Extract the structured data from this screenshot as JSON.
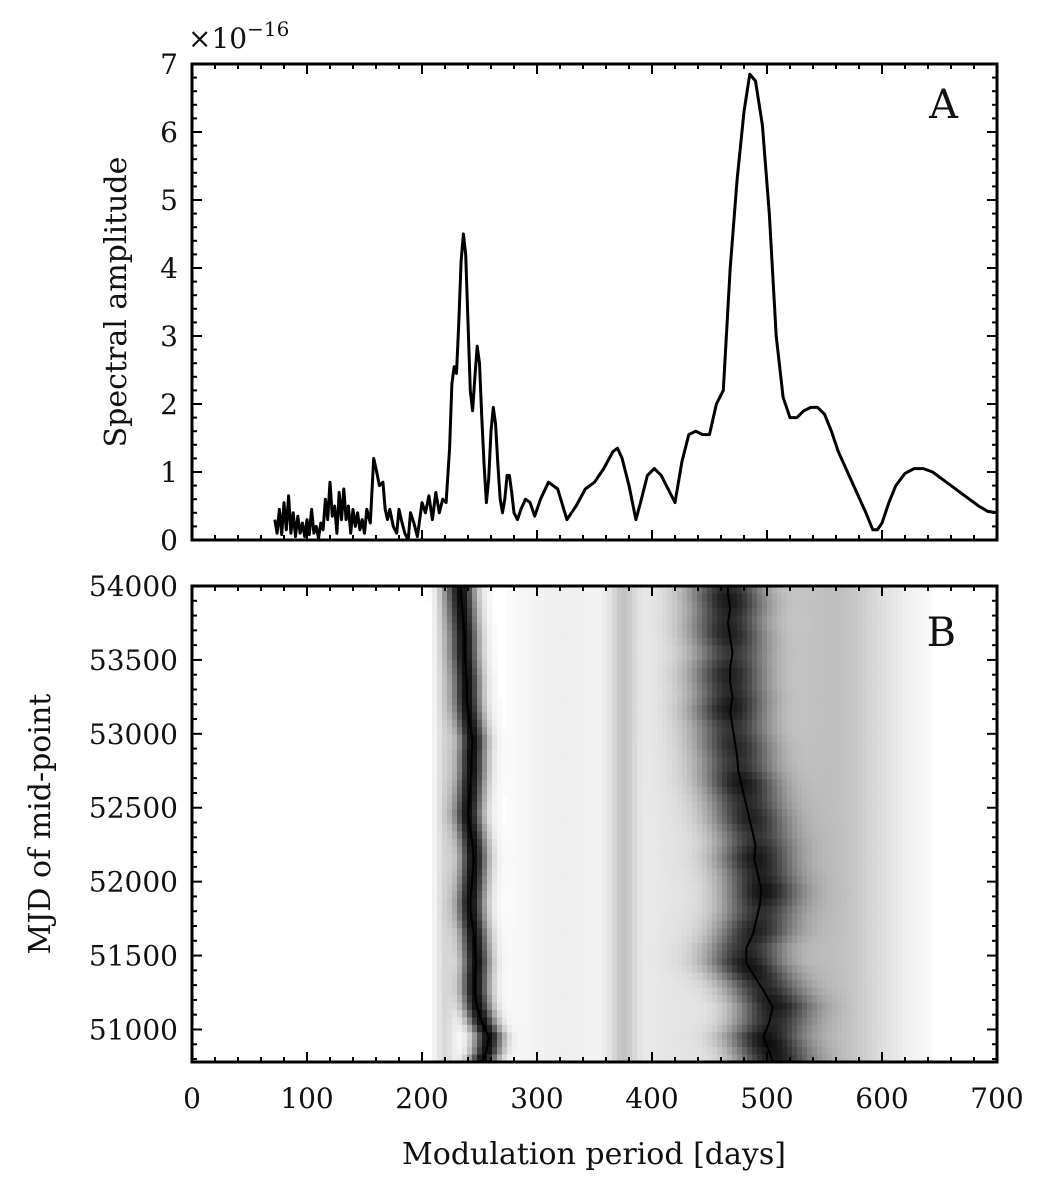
{
  "chart_data": [
    {
      "panel_label": "A",
      "type": "line",
      "xlabel": "",
      "ylabel": "Spectral amplitude",
      "y_scale_label": "×10",
      "y_scale_exponent": "−16",
      "xlim": [
        0,
        700
      ],
      "ylim": [
        0,
        7
      ],
      "x_ticks": [
        0,
        100,
        200,
        300,
        400,
        500,
        600,
        700
      ],
      "y_ticks": [
        0,
        1,
        2,
        3,
        4,
        5,
        6,
        7
      ],
      "y_tick_labels": [
        "0",
        "1",
        "2",
        "3",
        "4",
        "5",
        "6",
        "7"
      ],
      "series": [
        {
          "x": [
            72,
            74,
            76,
            78,
            80,
            82,
            84,
            86,
            88,
            90,
            92,
            94,
            96,
            98,
            100,
            102,
            104,
            106,
            108,
            110,
            112,
            114,
            116,
            118,
            120,
            122,
            124,
            126,
            128,
            130,
            132,
            134,
            136,
            138,
            140,
            142,
            144,
            146,
            148,
            150,
            152,
            155,
            158,
            160,
            163,
            166,
            168,
            170,
            172,
            175,
            178,
            180,
            182,
            185,
            188,
            190,
            193,
            196,
            200,
            203,
            206,
            209,
            212,
            215,
            218,
            221,
            224,
            226,
            228,
            230,
            232,
            234,
            236,
            238,
            240,
            242,
            244,
            246,
            248,
            250,
            252,
            254,
            256,
            258,
            260,
            262,
            264,
            266,
            268,
            270,
            272,
            274,
            276,
            278,
            280,
            283,
            286,
            290,
            294,
            298,
            303,
            310,
            318,
            326,
            334,
            342,
            350,
            358,
            366,
            370,
            374,
            380,
            386,
            390,
            396,
            402,
            408,
            414,
            420,
            426,
            432,
            438,
            444,
            450,
            456,
            462,
            468,
            474,
            480,
            485,
            490,
            496,
            502,
            508,
            514,
            520,
            526,
            532,
            538,
            544,
            550,
            556,
            562,
            570,
            578,
            586,
            592,
            596,
            600,
            606,
            612,
            620,
            628,
            636,
            644,
            652,
            660,
            668,
            676,
            684,
            692,
            700
          ],
          "y": [
            0.3,
            0.1,
            0.45,
            0.08,
            0.55,
            0.15,
            0.65,
            0.1,
            0.4,
            0.05,
            0.35,
            0.1,
            0.25,
            0.05,
            0.3,
            0.08,
            0.45,
            0.1,
            0.2,
            0.03,
            0.25,
            0.15,
            0.6,
            0.3,
            0.85,
            0.35,
            0.5,
            0.1,
            0.7,
            0.3,
            0.75,
            0.3,
            0.5,
            0.1,
            0.45,
            0.2,
            0.4,
            0.15,
            0.3,
            0.1,
            0.45,
            0.25,
            1.2,
            1.05,
            0.8,
            0.85,
            0.45,
            0.3,
            0.45,
            0.2,
            0.1,
            0.45,
            0.3,
            0.1,
            0.0,
            0.4,
            0.25,
            0.05,
            0.55,
            0.4,
            0.65,
            0.3,
            0.7,
            0.4,
            0.6,
            0.55,
            1.35,
            2.3,
            2.55,
            2.45,
            3.2,
            4.1,
            4.5,
            4.2,
            3.2,
            2.2,
            1.9,
            2.4,
            2.85,
            2.6,
            1.8,
            1.1,
            0.55,
            0.9,
            1.6,
            1.95,
            1.7,
            1.1,
            0.6,
            0.4,
            0.6,
            0.95,
            0.95,
            0.7,
            0.4,
            0.3,
            0.45,
            0.6,
            0.55,
            0.35,
            0.6,
            0.85,
            0.75,
            0.3,
            0.5,
            0.75,
            0.85,
            1.05,
            1.3,
            1.35,
            1.2,
            0.8,
            0.3,
            0.55,
            0.95,
            1.05,
            0.95,
            0.75,
            0.55,
            1.15,
            1.55,
            1.6,
            1.55,
            1.55,
            2.0,
            2.2,
            4.0,
            5.3,
            6.3,
            6.85,
            6.75,
            6.1,
            4.8,
            3.0,
            2.1,
            1.8,
            1.8,
            1.9,
            1.95,
            1.95,
            1.85,
            1.6,
            1.3,
            1.0,
            0.7,
            0.4,
            0.15,
            0.15,
            0.25,
            0.55,
            0.8,
            0.98,
            1.05,
            1.05,
            1.0,
            0.9,
            0.8,
            0.7,
            0.6,
            0.5,
            0.42,
            0.4
          ]
        }
      ]
    },
    {
      "panel_label": "B",
      "type": "heatmap",
      "xlabel": "Modulation period [days]",
      "ylabel": "MJD of mid-point",
      "xlim": [
        0,
        700
      ],
      "ylim": [
        50780,
        54000
      ],
      "x_ticks": [
        0,
        100,
        200,
        300,
        400,
        500,
        600,
        700
      ],
      "x_tick_labels": [
        "0",
        "100",
        "200",
        "300",
        "400",
        "500",
        "600",
        "700"
      ],
      "y_ticks": [
        51000,
        51500,
        52000,
        52500,
        53000,
        53500,
        54000
      ],
      "y_tick_labels": [
        "51000",
        "51500",
        "52000",
        "52500",
        "53000",
        "53500",
        "54000"
      ],
      "colormap": "gray_r",
      "bands": [
        {
          "center": 243,
          "width": 9,
          "max_intensity": 0.95
        },
        {
          "center": 490,
          "width": 24,
          "max_intensity": 0.85
        },
        {
          "center": 555,
          "width": 40,
          "max_intensity": 0.25
        },
        {
          "center": 375,
          "width": 8,
          "max_intensity": 0.18
        },
        {
          "center": 220,
          "width": 6,
          "max_intensity": 0.15
        },
        {
          "center": 320,
          "width": 30,
          "max_intensity": 0.06
        },
        {
          "center": 420,
          "width": 35,
          "max_intensity": 0.1
        }
      ],
      "series": [
        {
          "name": "",
          "mjd": [
            50780,
            50850,
            50950,
            51050,
            51150,
            51250,
            51350,
            51450,
            51550,
            51650,
            51750,
            51850,
            51950,
            52050,
            52150,
            52250,
            52350,
            52450,
            52550,
            52650,
            52750,
            52850,
            52950,
            53050,
            53150,
            53250,
            53350,
            53450,
            53550,
            53650,
            53750,
            53850,
            53950,
            54000
          ],
          "period": [
            252,
            256,
            258,
            252,
            248,
            246,
            246,
            247,
            246,
            245,
            243,
            242,
            243,
            244,
            245,
            244,
            242,
            240,
            241,
            242,
            243,
            243,
            244,
            242,
            240,
            239,
            239,
            238,
            237,
            237,
            236,
            235,
            234,
            234
          ]
        },
        {
          "name": "",
          "mjd": [
            50780,
            50850,
            50950,
            51050,
            51150,
            51250,
            51350,
            51450,
            51550,
            51650,
            51750,
            51850,
            51950,
            52050,
            52150,
            52250,
            52350,
            52450,
            52550,
            52650,
            52750,
            52850,
            52950,
            53050,
            53150,
            53250,
            53350,
            53450,
            53550,
            53650,
            53750,
            53850,
            53950,
            54000
          ],
          "period": [
            505,
            502,
            497,
            502,
            505,
            498,
            490,
            482,
            482,
            488,
            491,
            494,
            495,
            492,
            489,
            490,
            487,
            484,
            481,
            478,
            475,
            474,
            472,
            470,
            468,
            470,
            468,
            468,
            470,
            468,
            466,
            468,
            466,
            466
          ]
        }
      ]
    }
  ]
}
